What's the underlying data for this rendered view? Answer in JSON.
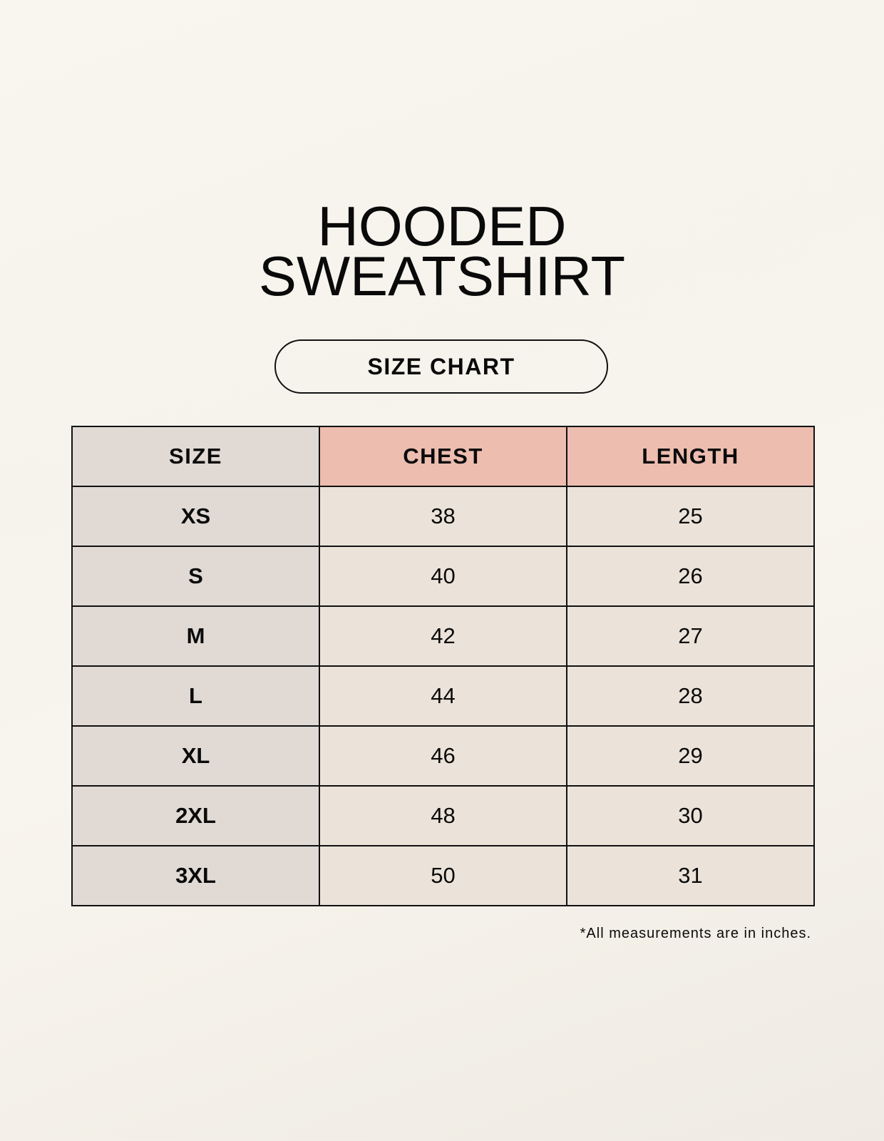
{
  "title_line1": "HOODED",
  "title_line2": "SWEATSHIRT",
  "badge": "SIZE CHART",
  "colors": {
    "size_column": "#e0d9d4",
    "header_accent": "#edbdb0",
    "cell": "#ebe3d9"
  },
  "table": {
    "headers": [
      "SIZE",
      "CHEST",
      "LENGTH"
    ],
    "rows": [
      [
        "XS",
        "38",
        "25"
      ],
      [
        "S",
        "40",
        "26"
      ],
      [
        "M",
        "42",
        "27"
      ],
      [
        "L",
        "44",
        "28"
      ],
      [
        "XL",
        "46",
        "29"
      ],
      [
        "2XL",
        "48",
        "30"
      ],
      [
        "3XL",
        "50",
        "31"
      ]
    ]
  },
  "footnote": "*All measurements are in inches."
}
